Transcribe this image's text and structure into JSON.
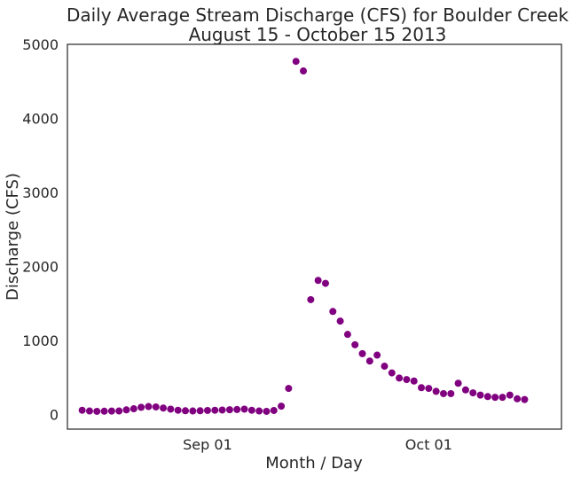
{
  "chart_data": {
    "type": "scatter",
    "title": "Daily Average Stream Discharge (CFS) for Boulder Creek",
    "subtitle": "August 15 - October 15 2013",
    "xlabel": "Month / Day",
    "ylabel": "Discharge (CFS)",
    "xlim": [
      "2013-08-13",
      "2013-10-19"
    ],
    "ylim": [
      -200,
      5000
    ],
    "x_ticks": [
      {
        "date": "2013-09-01",
        "label": "Sep 01"
      },
      {
        "date": "2013-10-01",
        "label": "Oct 01"
      }
    ],
    "y_ticks": [
      0,
      1000,
      2000,
      3000,
      4000,
      5000
    ],
    "grid": false,
    "marker_color": "#800080",
    "series": [
      {
        "x": [
          "2013-08-15",
          "2013-08-16",
          "2013-08-17",
          "2013-08-18",
          "2013-08-19",
          "2013-08-20",
          "2013-08-21",
          "2013-08-22",
          "2013-08-23",
          "2013-08-24",
          "2013-08-25",
          "2013-08-26",
          "2013-08-27",
          "2013-08-28",
          "2013-08-29",
          "2013-08-30",
          "2013-08-31",
          "2013-09-01",
          "2013-09-02",
          "2013-09-03",
          "2013-09-04",
          "2013-09-05",
          "2013-09-06",
          "2013-09-07",
          "2013-09-08",
          "2013-09-09",
          "2013-09-10",
          "2013-09-11",
          "2013-09-12",
          "2013-09-13",
          "2013-09-14",
          "2013-09-15",
          "2013-09-16",
          "2013-09-17",
          "2013-09-18",
          "2013-09-19",
          "2013-09-20",
          "2013-09-21",
          "2013-09-22",
          "2013-09-23",
          "2013-09-24",
          "2013-09-25",
          "2013-09-26",
          "2013-09-27",
          "2013-09-28",
          "2013-09-29",
          "2013-09-30",
          "2013-10-01",
          "2013-10-02",
          "2013-10-03",
          "2013-10-04",
          "2013-10-05",
          "2013-10-06",
          "2013-10-07",
          "2013-10-08",
          "2013-10-09",
          "2013-10-10",
          "2013-10-11",
          "2013-10-12",
          "2013-10-13",
          "2013-10-14"
        ],
        "values": [
          55,
          45,
          40,
          42,
          44,
          45,
          60,
          75,
          95,
          105,
          100,
          85,
          70,
          55,
          48,
          45,
          48,
          52,
          55,
          58,
          62,
          65,
          70,
          55,
          45,
          40,
          52,
          110,
          350,
          4770,
          4640,
          1550,
          1810,
          1770,
          1390,
          1260,
          1080,
          940,
          820,
          720,
          800,
          650,
          560,
          490,
          470,
          450,
          360,
          350,
          310,
          280,
          280,
          420,
          330,
          290,
          260,
          240,
          230,
          230,
          260,
          210,
          200
        ]
      }
    ]
  }
}
